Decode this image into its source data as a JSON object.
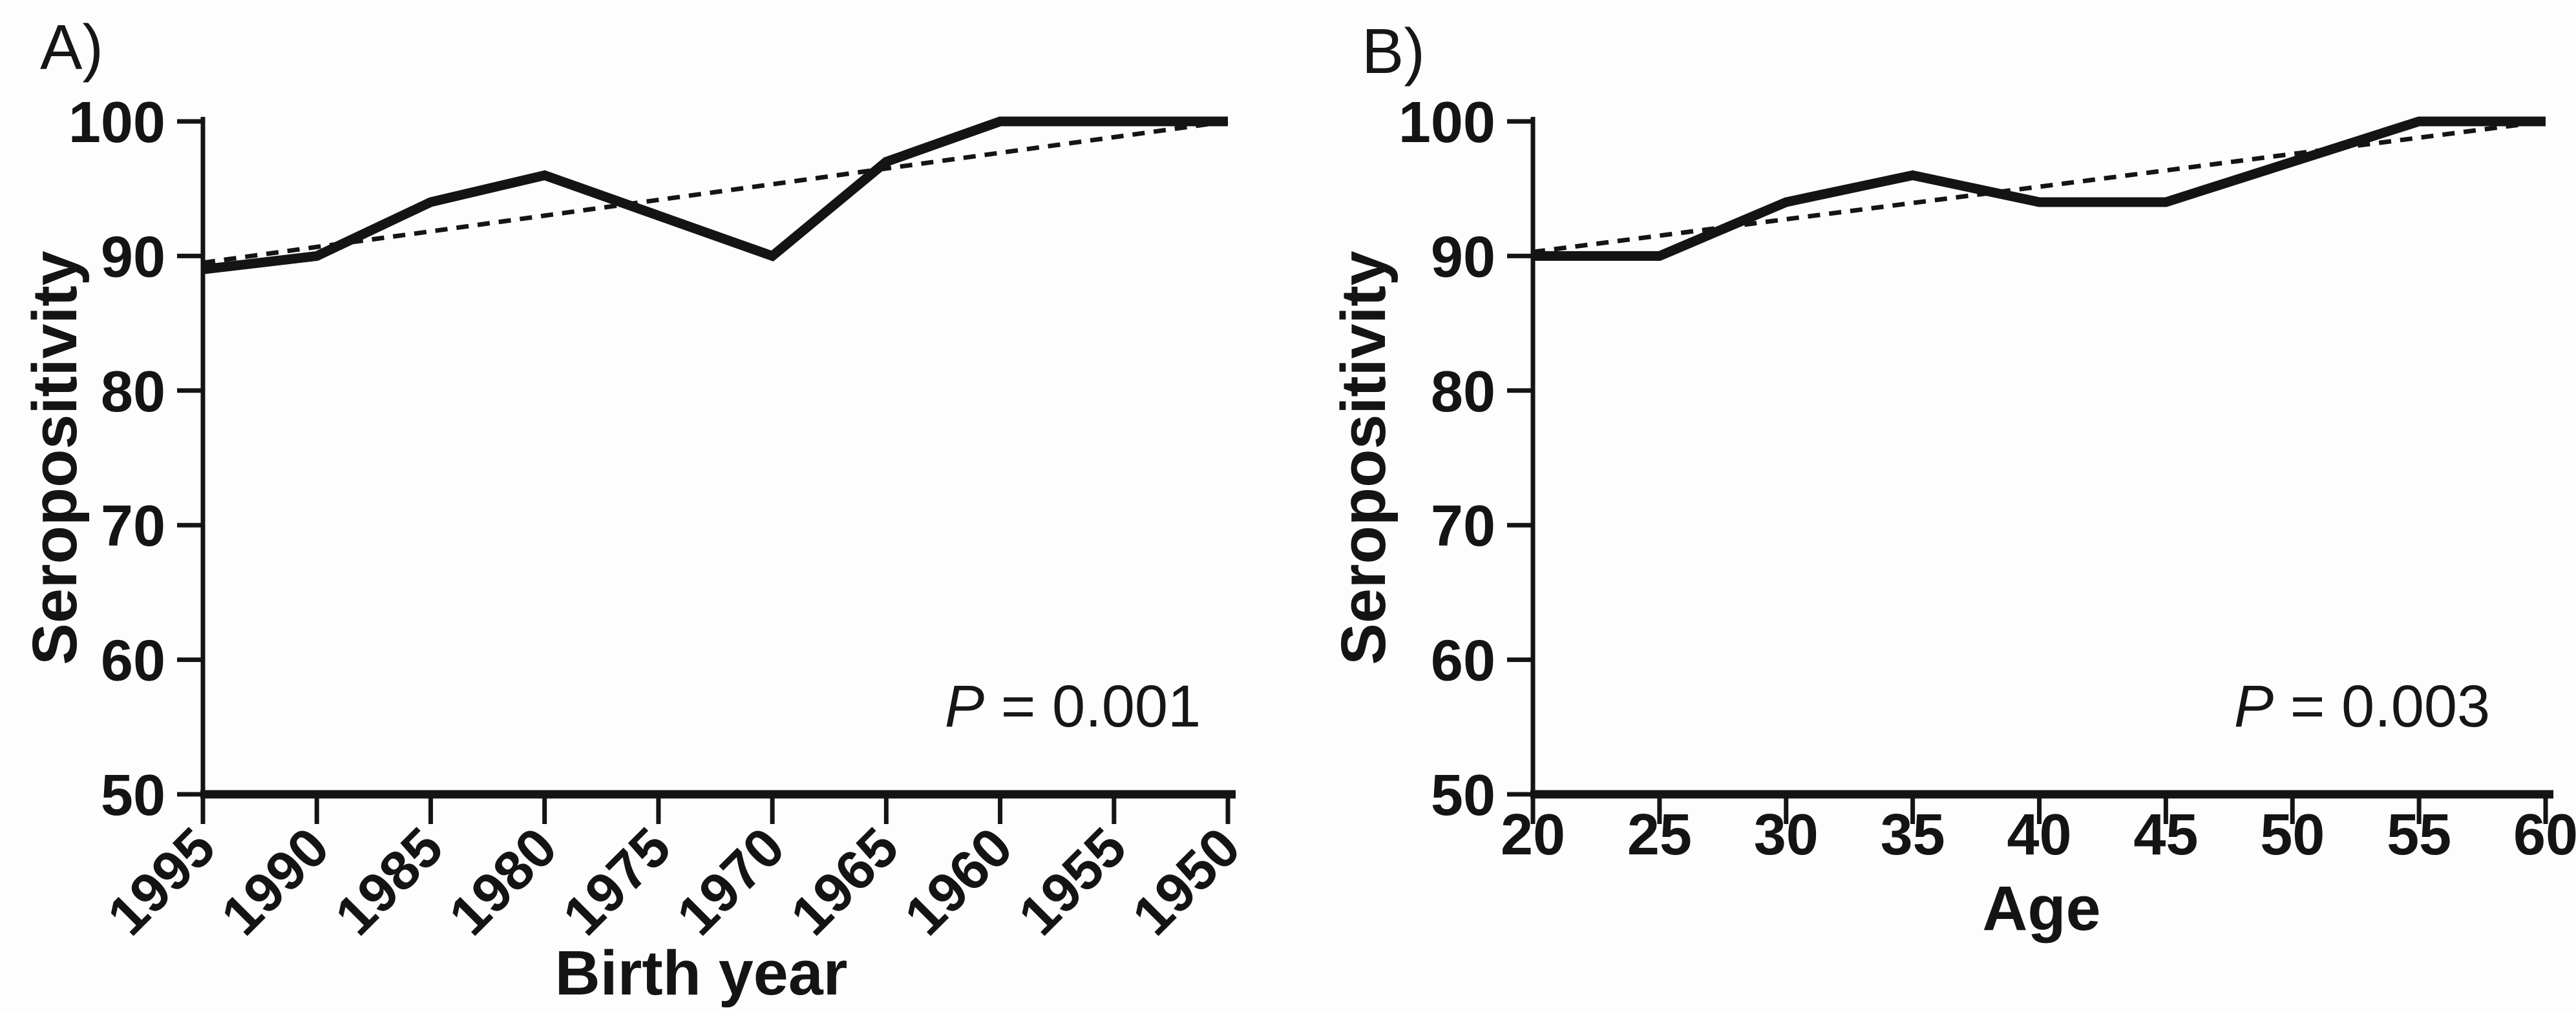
{
  "figure": {
    "background": "#fdfdfd",
    "ink_color": "#141414"
  },
  "chart_data": [
    {
      "type": "line",
      "panel_label": "A)",
      "xlabel": "Birth year",
      "ylabel": "Seropositivity",
      "x_categories": [
        "1995",
        "1990",
        "1985",
        "1980",
        "1975",
        "1970",
        "1965",
        "1960",
        "1955",
        "1950"
      ],
      "x_tick_style": "rotated-45",
      "y_ticks": [
        50,
        60,
        70,
        80,
        90,
        100
      ],
      "ylim": [
        50,
        100
      ],
      "grid": "off",
      "legend": "none",
      "series": [
        {
          "name": "observed-seropositivity",
          "style": "solid",
          "values": [
            89,
            90,
            94,
            96,
            93,
            90,
            97,
            100,
            100,
            100
          ]
        },
        {
          "name": "linear-trend",
          "style": "dashed",
          "values": [
            89.5,
            90.67,
            91.83,
            93,
            94.17,
            95.33,
            96.5,
            97.67,
            98.83,
            100
          ]
        }
      ],
      "annotation": {
        "p_symbol": "P",
        "p_text": " = 0.001"
      }
    },
    {
      "type": "line",
      "panel_label": "B)",
      "xlabel": "Age",
      "ylabel": "Seropositivity",
      "x_categories": [
        "20",
        "25",
        "30",
        "35",
        "40",
        "45",
        "50",
        "55",
        "60"
      ],
      "x_tick_style": "horizontal",
      "y_ticks": [
        50,
        60,
        70,
        80,
        90,
        100
      ],
      "ylim": [
        50,
        100
      ],
      "grid": "off",
      "legend": "none",
      "series": [
        {
          "name": "observed-seropositivity",
          "style": "solid",
          "values": [
            90,
            90,
            94,
            96,
            94,
            94,
            97,
            100,
            100
          ]
        },
        {
          "name": "linear-trend",
          "style": "dashed",
          "values": [
            90.3,
            91.51,
            92.73,
            93.94,
            95.15,
            96.36,
            97.58,
            98.79,
            100
          ]
        }
      ],
      "annotation": {
        "p_symbol": "P",
        "p_text": " = 0.003"
      }
    }
  ]
}
